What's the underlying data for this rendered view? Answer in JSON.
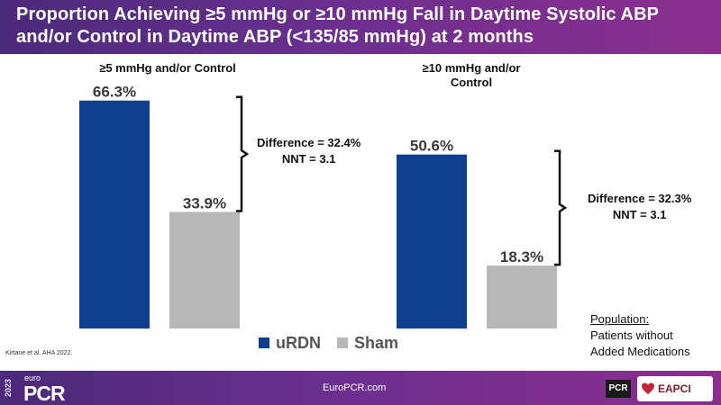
{
  "title": {
    "line1": "Proportion Achieving ≥5 mmHg or  ≥10 mmHg Fall in Daytime Systolic ABP",
    "line2": "and/or Control in Daytime ABP (<135/85 mmHg) at 2 months"
  },
  "chart_data": {
    "type": "bar",
    "groups": [
      {
        "label": "≥5 mmHg and/or Control",
        "values": [
          66.3,
          33.9
        ],
        "value_labels": [
          "66.3%",
          "33.9%"
        ],
        "difference": "Difference = 32.4%",
        "nnt": "NNT = 3.1"
      },
      {
        "label": "≥10 mmHg and/or Control",
        "values": [
          50.6,
          18.3
        ],
        "value_labels": [
          "50.6%",
          "18.3%"
        ],
        "difference": "Difference = 32.3%",
        "nnt": "NNT = 3.1"
      }
    ],
    "series": [
      {
        "name": "uRDN",
        "color": "#0d3f8f"
      },
      {
        "name": "Sham",
        "color": "#b7b7b7"
      }
    ],
    "ylim": [
      0,
      80
    ],
    "grid": false,
    "legend_position": "bottom-center"
  },
  "legend": {
    "urdn": "uRDN",
    "sham": "Sham"
  },
  "citation": "Kirtane et al. AHA 2022.",
  "population": {
    "title": "Population:",
    "line1": "Patients without",
    "line2": "Added Medications"
  },
  "footer": {
    "year": "2023",
    "euro": "euro",
    "pcr": "PCR",
    "url": "EuroPCR.com",
    "pcr_logo": "PCR",
    "eapci": "EAPCI"
  }
}
